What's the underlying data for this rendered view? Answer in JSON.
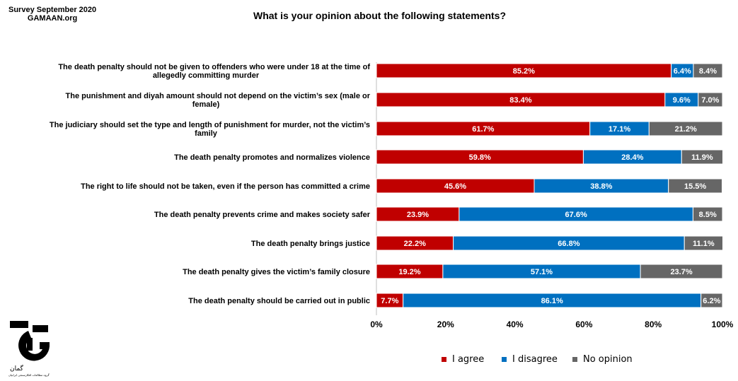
{
  "header": {
    "survey_line1": "Survey September 2020",
    "survey_line2": "GAMAAN.org",
    "title": "What is your opinion about the following statements?"
  },
  "logo": {
    "icon": "gamaan-logo-icon",
    "text": "گمان",
    "subtext": "گروه مطالعات افکارسنجی ایرانیان"
  },
  "colors": {
    "agree": "#C00000",
    "disagree": "#0070C0",
    "no_opinion": "#666666"
  },
  "chart_data": {
    "type": "bar",
    "orientation": "horizontal",
    "stacked": true,
    "percent_stacked": true,
    "title": "What is your opinion about the following statements?",
    "categories": [
      "The death penalty should not be given to offenders who were under 18 at the time of allegedly committing murder",
      "The punishment and diyah amount should not depend on the victim’s sex (male or female)",
      "The judiciary should set the type and length of punishment for murder, not the victim’s family",
      "The death penalty promotes and normalizes violence",
      "The right to life should not be taken, even if the person has committed a crime",
      "The death penalty prevents crime and makes society safer",
      "The death penalty brings justice",
      "The death penalty gives the victim’s family closure",
      "The death penalty should be carried out in public"
    ],
    "series": [
      {
        "name": "I agree",
        "values": [
          85.2,
          83.4,
          61.7,
          59.8,
          45.6,
          23.9,
          22.2,
          19.2,
          7.7
        ]
      },
      {
        "name": "I disagree",
        "values": [
          6.4,
          9.6,
          17.1,
          28.4,
          38.8,
          67.6,
          66.8,
          57.1,
          86.1
        ]
      },
      {
        "name": "No opinion",
        "values": [
          8.4,
          7.0,
          21.2,
          11.9,
          15.5,
          8.5,
          11.1,
          23.7,
          6.2
        ]
      }
    ],
    "x_ticks": [
      "0%",
      "20%",
      "40%",
      "60%",
      "80%",
      "100%"
    ],
    "xlim": [
      0,
      100
    ],
    "grid": false,
    "legend_position": "bottom-right",
    "value_suffix": "%"
  }
}
